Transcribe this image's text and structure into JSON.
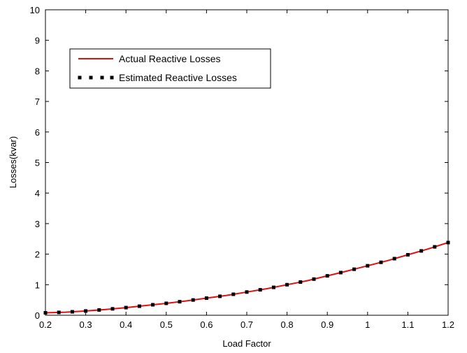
{
  "chart_data": {
    "type": "line",
    "title": "",
    "xlabel": "Load Factor",
    "ylabel": "Losses(kvar)",
    "xlim": [
      0.2,
      1.2
    ],
    "ylim": [
      0,
      10
    ],
    "x_ticks": [
      "0.2",
      "0.3",
      "0.4",
      "0.5",
      "0.6",
      "0.7",
      "0.8",
      "0.9",
      "1",
      "1.1",
      "1.2"
    ],
    "y_ticks": [
      "0",
      "1",
      "2",
      "3",
      "4",
      "5",
      "6",
      "7",
      "8",
      "9",
      "10"
    ],
    "grid": false,
    "legend_position": "top-left",
    "x": [
      0.2,
      0.25,
      0.3,
      0.35,
      0.4,
      0.45,
      0.5,
      0.55,
      0.6,
      0.65,
      0.7,
      0.75,
      0.8,
      0.85,
      0.9,
      0.95,
      1.0,
      1.05,
      1.1,
      1.15,
      1.2
    ],
    "series": [
      {
        "name": "Actual Reactive Losses",
        "style": "solid",
        "color": "#e01010",
        "values": [
          0.08,
          0.1,
          0.14,
          0.19,
          0.25,
          0.32,
          0.39,
          0.47,
          0.56,
          0.65,
          0.76,
          0.87,
          1.0,
          1.13,
          1.29,
          1.45,
          1.62,
          1.79,
          1.98,
          2.17,
          2.38
        ]
      },
      {
        "name": "Estimated Reactive Losses",
        "style": "dotted",
        "color": "#000000",
        "values": [
          0.08,
          0.1,
          0.14,
          0.19,
          0.25,
          0.32,
          0.39,
          0.47,
          0.56,
          0.65,
          0.76,
          0.87,
          1.0,
          1.13,
          1.29,
          1.45,
          1.62,
          1.79,
          1.98,
          2.17,
          2.38
        ]
      }
    ]
  }
}
